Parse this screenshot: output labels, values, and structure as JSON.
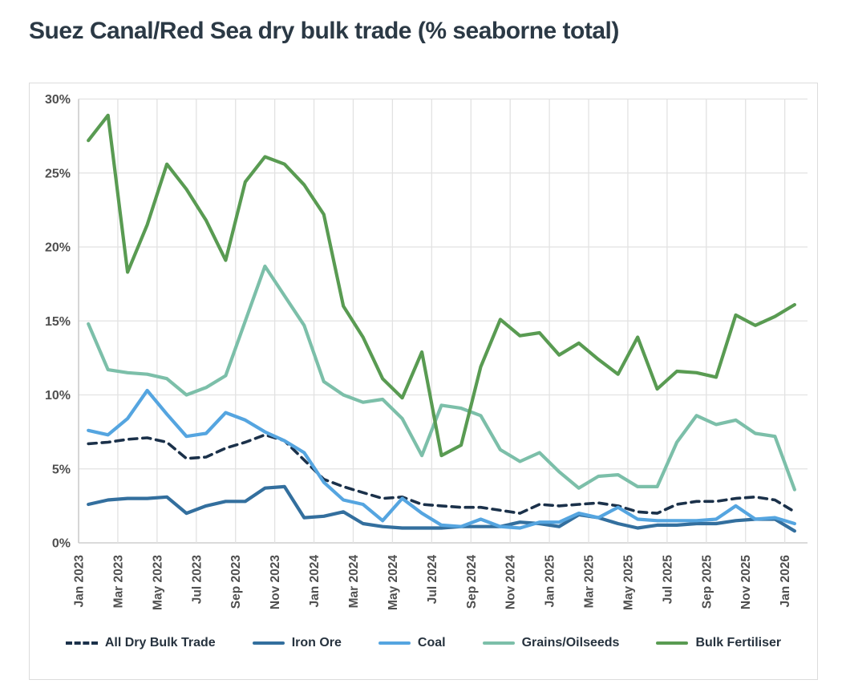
{
  "page_title": "Suez Canal/Red Sea dry bulk trade (% seaborne total)",
  "chart_data": {
    "type": "line",
    "title": "Suez Canal/Red Sea dry bulk trade (% seaborne total)",
    "legend_position": "bottom",
    "grid": true,
    "ylim": [
      0,
      30
    ],
    "y_tick_labels": [
      "0%",
      "5%",
      "10%",
      "15%",
      "20%",
      "25%",
      "30%"
    ],
    "x_tick_labels": [
      "Jan 2023",
      "Mar 2023",
      "May 2023",
      "Jul 2023",
      "Sep 2023",
      "Nov 2023",
      "Jan 2024",
      "Mar 2024",
      "May 2024",
      "Jul 2024",
      "Sep 2024",
      "Nov 2024",
      "Jan 2025",
      "Mar 2025",
      "May 2025",
      "Jul 2025",
      "Sep 2025",
      "Nov 2025",
      "Jan 2026"
    ],
    "x": [
      "Jan 2023",
      "Feb 2023",
      "Mar 2023",
      "Apr 2023",
      "May 2023",
      "Jun 2023",
      "Jul 2023",
      "Aug 2023",
      "Sep 2023",
      "Oct 2023",
      "Nov 2023",
      "Dec 2023",
      "Jan 2024",
      "Feb 2024",
      "Mar 2024",
      "Apr 2024",
      "May 2024",
      "Jun 2024",
      "Jul 2024",
      "Aug 2024",
      "Sep 2024",
      "Oct 2024",
      "Nov 2024",
      "Dec 2024",
      "Jan 2025",
      "Feb 2025",
      "Mar 2025",
      "Apr 2025",
      "May 2025",
      "Jun 2025",
      "Jul 2025",
      "Aug 2025",
      "Sep 2025",
      "Oct 2025",
      "Nov 2025",
      "Dec 2025",
      "Jan 2026"
    ],
    "y_unit": "% of seaborne total",
    "series": [
      {
        "name": "All Dry Bulk Trade",
        "color": "#1b314a",
        "dash": true,
        "values": [
          6.7,
          6.8,
          7.0,
          7.1,
          6.8,
          5.7,
          5.8,
          6.4,
          6.8,
          7.3,
          6.9,
          5.6,
          4.3,
          3.8,
          3.4,
          3.0,
          3.1,
          2.6,
          2.5,
          2.4,
          2.4,
          2.2,
          2.0,
          2.6,
          2.5,
          2.6,
          2.7,
          2.5,
          2.1,
          2.0,
          2.6,
          2.8,
          2.8,
          3.0,
          3.1,
          2.9,
          2.1
        ]
      },
      {
        "name": "Iron Ore",
        "color": "#336f9e",
        "dash": false,
        "values": [
          2.6,
          2.9,
          3.0,
          3.0,
          3.1,
          2.0,
          2.5,
          2.8,
          2.8,
          3.7,
          3.8,
          1.7,
          1.8,
          2.1,
          1.3,
          1.1,
          1.0,
          1.0,
          1.0,
          1.1,
          1.1,
          1.1,
          1.4,
          1.3,
          1.1,
          1.9,
          1.7,
          1.3,
          1.0,
          1.2,
          1.2,
          1.3,
          1.3,
          1.5,
          1.6,
          1.6,
          0.8
        ]
      },
      {
        "name": "Coal",
        "color": "#55a5e0",
        "dash": false,
        "values": [
          7.6,
          7.3,
          8.4,
          10.3,
          8.7,
          7.2,
          7.4,
          8.8,
          8.3,
          7.5,
          6.9,
          6.1,
          4.1,
          2.9,
          2.6,
          1.5,
          3.0,
          2.0,
          1.2,
          1.1,
          1.6,
          1.1,
          1.0,
          1.4,
          1.4,
          2.0,
          1.7,
          2.4,
          1.6,
          1.5,
          1.5,
          1.5,
          1.6,
          2.5,
          1.6,
          1.7,
          1.3
        ]
      },
      {
        "name": "Grains/Oilseeds",
        "color": "#7cbfa9",
        "dash": false,
        "values": [
          14.8,
          11.7,
          11.5,
          11.4,
          11.1,
          10.0,
          10.5,
          11.3,
          15.0,
          18.7,
          16.7,
          14.7,
          10.9,
          10.0,
          9.5,
          9.7,
          8.4,
          5.9,
          9.3,
          9.1,
          8.6,
          6.3,
          5.5,
          6.1,
          4.8,
          3.7,
          4.5,
          4.6,
          3.8,
          3.8,
          6.8,
          8.6,
          8.0,
          8.3,
          7.4,
          7.2,
          3.6
        ]
      },
      {
        "name": "Bulk Fertiliser",
        "color": "#599b52",
        "dash": false,
        "values": [
          27.2,
          28.9,
          18.3,
          21.5,
          25.6,
          23.9,
          21.8,
          19.1,
          24.4,
          26.1,
          25.6,
          24.2,
          22.2,
          16.0,
          13.9,
          11.1,
          9.8,
          12.9,
          5.9,
          6.6,
          11.9,
          15.1,
          14.0,
          14.2,
          12.7,
          13.5,
          12.4,
          11.4,
          13.9,
          10.4,
          11.6,
          11.5,
          11.2,
          15.4,
          14.7,
          15.3,
          16.1
        ]
      }
    ],
    "colors": {
      "title_text": "#2b3945",
      "axis_text": "#4f4f4f",
      "gridline": "#e2e2e2",
      "axis_line": "#c4c4c4"
    }
  }
}
